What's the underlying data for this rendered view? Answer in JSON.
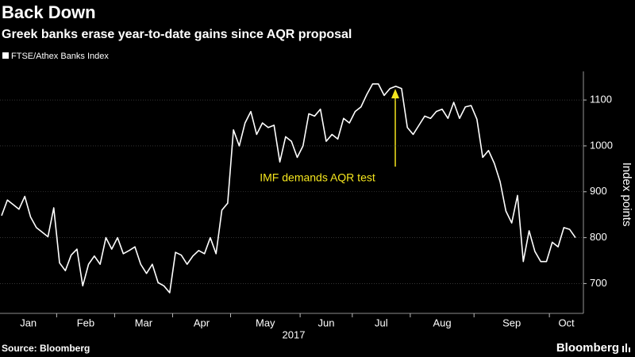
{
  "chart_data": {
    "type": "line",
    "title": "Back Down",
    "subtitle": "Greek banks erase year-to-date gains since AQR proposal",
    "categories": [
      "Jan",
      null,
      null,
      null,
      null,
      null,
      null,
      null,
      null,
      null,
      "Feb",
      null,
      null,
      null,
      null,
      null,
      null,
      null,
      null,
      null,
      "Mar",
      null,
      null,
      null,
      null,
      null,
      null,
      null,
      null,
      null,
      "Apr",
      null,
      null,
      null,
      null,
      null,
      null,
      null,
      null,
      null,
      "May",
      null,
      null,
      null,
      null,
      null,
      null,
      null,
      null,
      null,
      null,
      null,
      "Jun",
      null,
      null,
      null,
      null,
      null,
      null,
      null,
      null,
      "Jul",
      null,
      null,
      null,
      null,
      null,
      null,
      null,
      null,
      null,
      "Aug",
      null,
      null,
      null,
      null,
      null,
      null,
      null,
      null,
      null,
      null,
      "Sep",
      null,
      null,
      null,
      null,
      null,
      null,
      null,
      null,
      null,
      null,
      null,
      null,
      "Oct",
      null,
      null,
      null,
      null
    ],
    "series": [
      {
        "name": "FTSE/Athex Banks Index",
        "color": "#ffffff",
        "values": [
          848,
          882,
          872,
          862,
          890,
          845,
          822,
          812,
          802,
          865,
          745,
          728,
          762,
          775,
          695,
          742,
          760,
          742,
          800,
          775,
          800,
          765,
          772,
          780,
          742,
          722,
          742,
          702,
          695,
          680,
          768,
          762,
          742,
          760,
          772,
          765,
          800,
          765,
          860,
          875,
          1035,
          1000,
          1050,
          1075,
          1025,
          1050,
          1040,
          1045,
          965,
          1020,
          1010,
          975,
          1000,
          1070,
          1065,
          1080,
          1010,
          1025,
          1015,
          1060,
          1050,
          1075,
          1085,
          1112,
          1135,
          1135,
          1110,
          1125,
          1130,
          1125,
          1040,
          1025,
          1045,
          1065,
          1060,
          1075,
          1080,
          1060,
          1095,
          1060,
          1085,
          1088,
          1058,
          975,
          990,
          962,
          922,
          858,
          832,
          892,
          748,
          815,
          770,
          748,
          748,
          790,
          780,
          822,
          818,
          800
        ]
      }
    ],
    "xlabel": "2017",
    "ylabel": "Index points",
    "ylim": [
      635,
      1152
    ],
    "yticks": [
      700,
      800,
      900,
      1000,
      1100
    ],
    "grid": true,
    "annotation": "IMF demands AQR test",
    "source": "Source: Bloomberg",
    "brand": "Bloomberg"
  }
}
